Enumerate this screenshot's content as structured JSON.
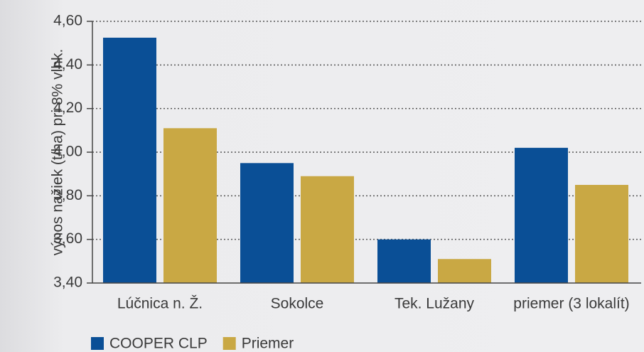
{
  "chart_data": {
    "type": "bar",
    "y_label": "výnos nažiek (t/ha) pri 8% vlhk.",
    "categories": [
      "Lúčnica n. Ž.",
      "Sokolce",
      "Tek. Lužany",
      "priemer (3 lokalít)"
    ],
    "series": [
      {
        "name": "COOPER CLP",
        "color": "#0a4f96",
        "values": [
          4.525,
          3.95,
          3.6,
          4.02
        ]
      },
      {
        "name": "Priemer",
        "color": "#c9a844",
        "values": [
          4.11,
          3.89,
          3.51,
          3.85
        ]
      }
    ],
    "ylim": [
      3.4,
      4.6
    ],
    "yticks": [
      {
        "value": 3.4,
        "label": "3,40"
      },
      {
        "value": 3.6,
        "label": "3,60"
      },
      {
        "value": 3.8,
        "label": "3,80"
      },
      {
        "value": 4.0,
        "label": "4,00"
      },
      {
        "value": 4.2,
        "label": "4,20"
      },
      {
        "value": 4.4,
        "label": "4,40"
      },
      {
        "value": 4.6,
        "label": "4,60"
      }
    ],
    "grid": true,
    "legend": "bottom"
  }
}
